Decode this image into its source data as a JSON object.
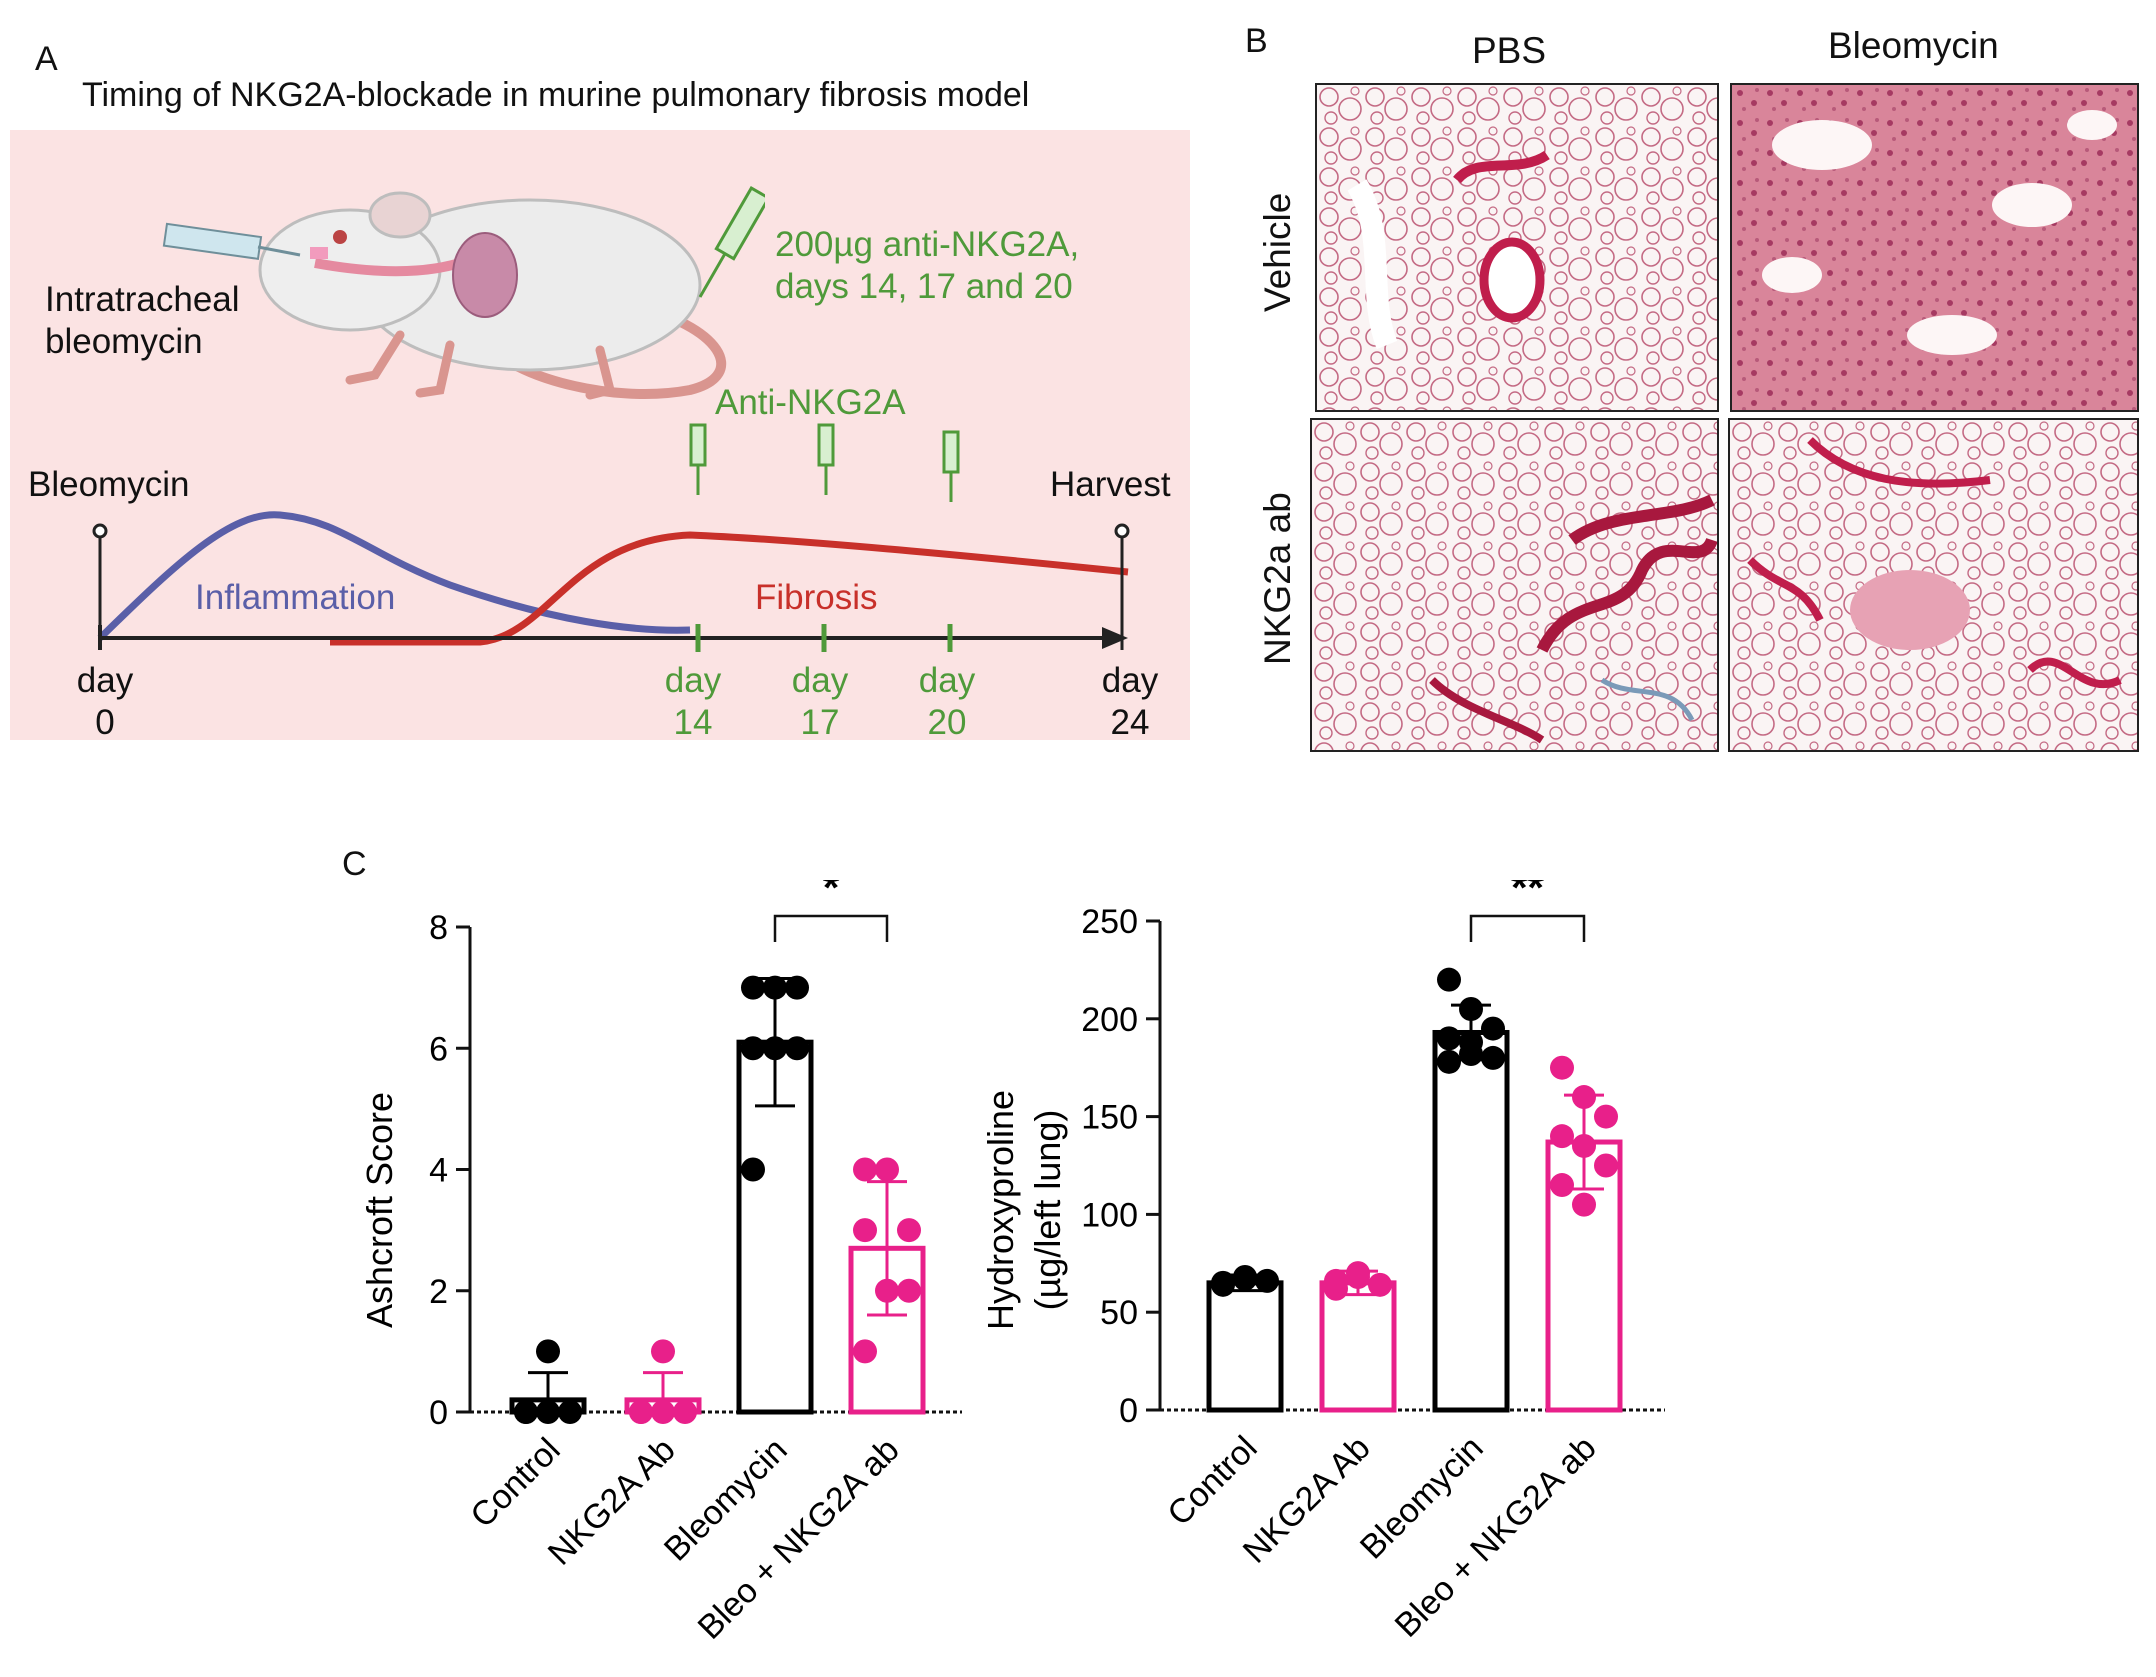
{
  "panelA": {
    "label": "A",
    "title": "Timing of NKG2A-blockade in murine pulmonary fibrosis model",
    "intratracheal_line1": "Intratracheal",
    "intratracheal_line2": "bleomycin",
    "dose_line1": "200µg anti-NKG2A,",
    "dose_line2": "days 14, 17 and 20",
    "anti_label": "Anti-NKG2A",
    "start_label": "Bleomycin",
    "end_label": "Harvest",
    "inflammation_label": "Inflammation",
    "fibrosis_label": "Fibrosis",
    "days": [
      {
        "word": "day",
        "num": "0"
      },
      {
        "word": "day",
        "num": "14"
      },
      {
        "word": "day",
        "num": "17"
      },
      {
        "word": "day",
        "num": "20"
      },
      {
        "word": "day",
        "num": "24"
      }
    ],
    "colors": {
      "background": "#fbe3e3",
      "inflammation": "#5a5fa8",
      "fibrosis": "#c8302a",
      "treatment": "#4f9a3a"
    }
  },
  "panelB": {
    "label": "B",
    "col_headers": [
      "PBS",
      "Bleomycin"
    ],
    "row_headers": [
      "Vehicle",
      "NKG2a ab"
    ]
  },
  "panelC": {
    "label": "C"
  },
  "chart_data": [
    {
      "type": "bar",
      "ylabel": "Ashcroft Score",
      "ylim": [
        0,
        8
      ],
      "yticks": [
        "0",
        "2",
        "4",
        "6",
        "8"
      ],
      "categories": [
        "Control",
        "NKG2A Ab",
        "Bleomycin",
        "Bleo + NKG2A ab"
      ],
      "values": [
        0.2,
        0.2,
        6.1,
        2.7
      ],
      "error": [
        0.45,
        0.45,
        1.05,
        1.1
      ],
      "points": [
        [
          0,
          0,
          0,
          0,
          1
        ],
        [
          0,
          0,
          0,
          0,
          1
        ],
        [
          7,
          7,
          7,
          6,
          6,
          6,
          4
        ],
        [
          4,
          4,
          3,
          3,
          2,
          2,
          1
        ]
      ],
      "colors": [
        "#000000",
        "#e8208a",
        "#000000",
        "#e8208a"
      ],
      "significance": {
        "from": 2,
        "to": 3,
        "label": "*"
      }
    },
    {
      "type": "bar",
      "ylabel_line1": "Hydroxyproline",
      "ylabel_line2": "(µg/left lung)",
      "ylim": [
        0,
        250
      ],
      "yticks": [
        "0",
        "50",
        "100",
        "150",
        "200",
        "250"
      ],
      "categories": [
        "Control",
        "NKG2A Ab",
        "Bleomycin",
        "Bleo + NKG2A ab"
      ],
      "values": [
        65,
        65,
        193,
        137
      ],
      "error": [
        4,
        6,
        14,
        24
      ],
      "points": [
        [
          65,
          68,
          66,
          64,
          67
        ],
        [
          62,
          70,
          64,
          66,
          68
        ],
        [
          220,
          205,
          195,
          190,
          188,
          180,
          178,
          182
        ],
        [
          175,
          160,
          150,
          140,
          135,
          125,
          115,
          105
        ]
      ],
      "colors": [
        "#000000",
        "#e8208a",
        "#000000",
        "#e8208a"
      ],
      "significance": {
        "from": 2,
        "to": 3,
        "label": "**"
      }
    }
  ]
}
